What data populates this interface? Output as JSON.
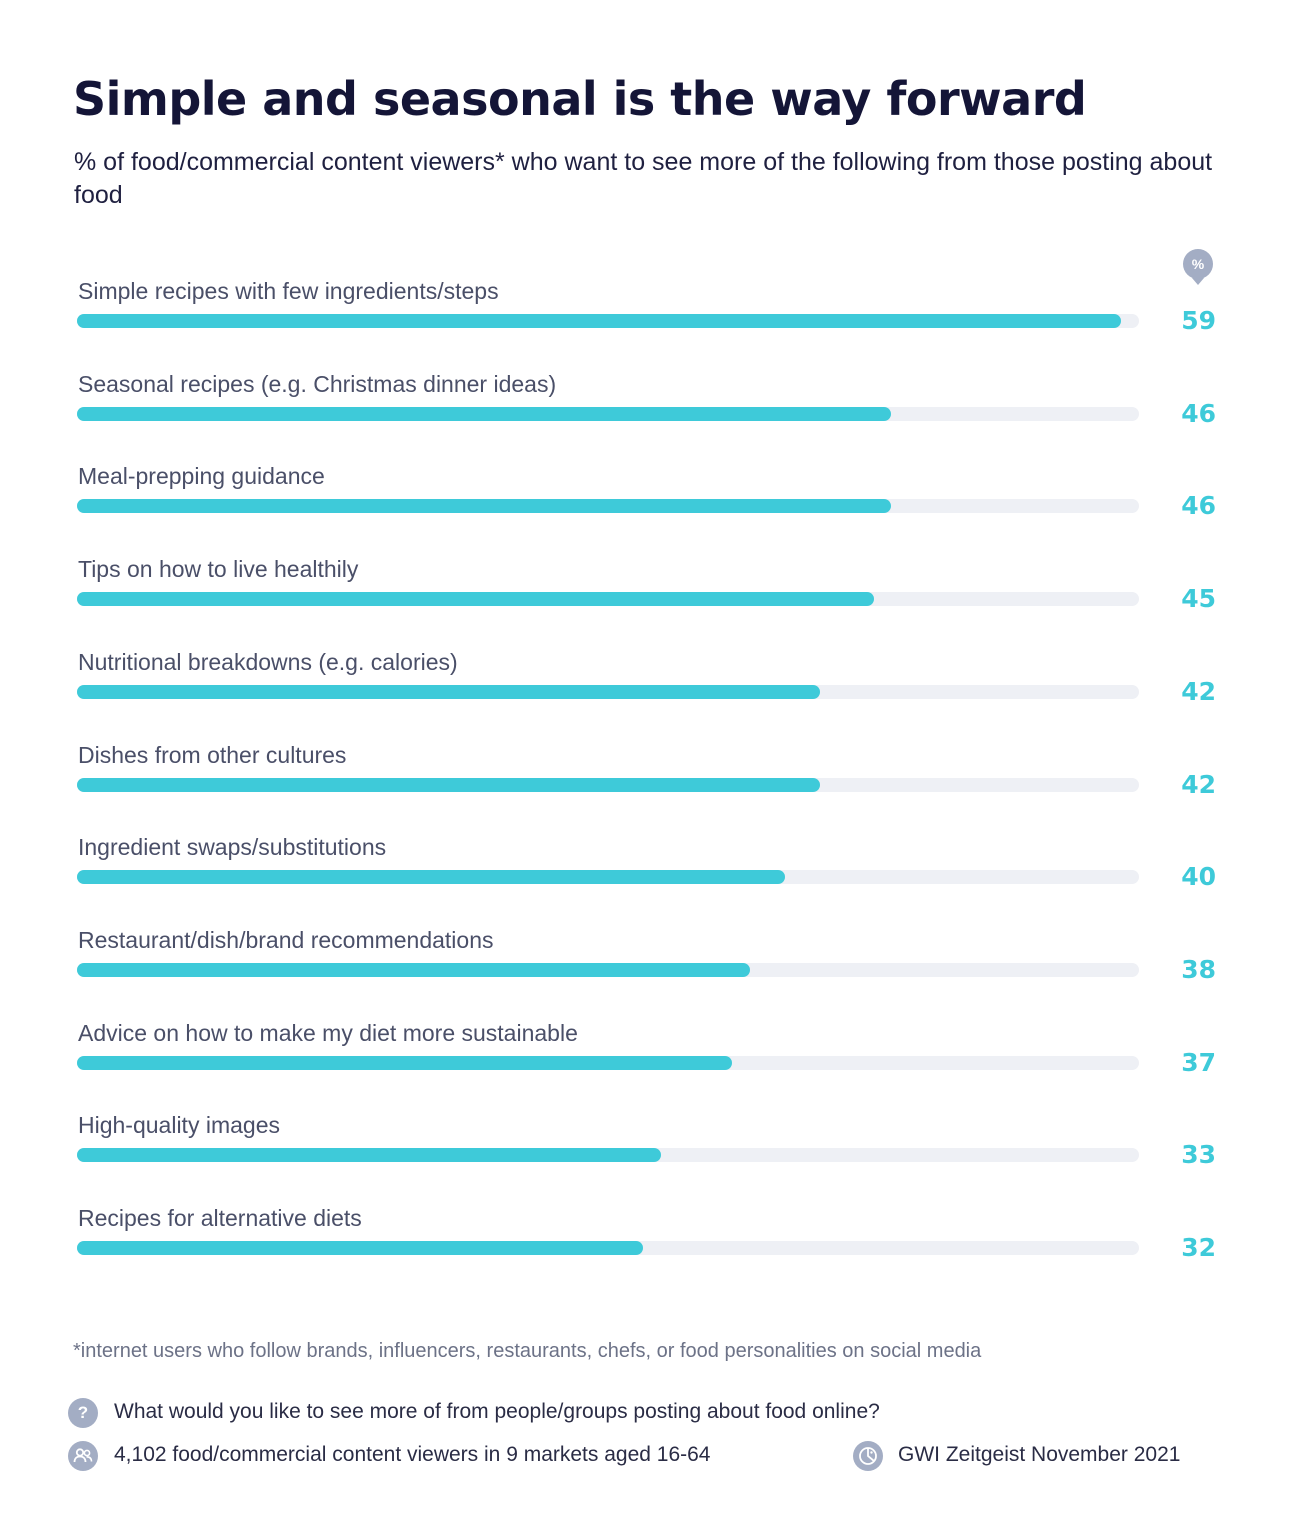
{
  "title": "Simple and seasonal is the way forward",
  "subtitle": "% of food/commercial content viewers* who want to see more of the following from those posting about food",
  "unit_badge": "%",
  "colors": {
    "bar_fill": "#3ecad9",
    "bar_track": "#eef0f5",
    "title": "#141537",
    "icon": "#a3adc4"
  },
  "chart_data": {
    "type": "bar",
    "orientation": "horizontal",
    "categories": [
      "Simple recipes with few ingredients/steps",
      "Seasonal recipes (e.g. Christmas dinner ideas)",
      "Meal-prepping guidance",
      "Tips on how to live healthily",
      "Nutritional breakdowns (e.g. calories)",
      "Dishes from other cultures",
      "Ingredient swaps/substitutions",
      "Restaurant/dish/brand recommendations",
      "Advice on how to make my diet more sustainable",
      "High-quality images",
      "Recipes for alternative diets"
    ],
    "values": [
      59,
      46,
      46,
      45,
      42,
      42,
      40,
      38,
      37,
      33,
      32
    ],
    "unit": "%",
    "xlim": [
      0,
      60
    ],
    "grid": false,
    "legend": false
  },
  "footnote": "*internet users who follow brands, influencers, restaurants, chefs, or food personalities on social media",
  "meta": {
    "question": "What would you like to see more of from people/groups posting about food online?",
    "question_icon": "?",
    "sample": "4,102 food/commercial content viewers in 9 markets aged 16-64",
    "source": "GWI Zeitgeist November 2021"
  }
}
